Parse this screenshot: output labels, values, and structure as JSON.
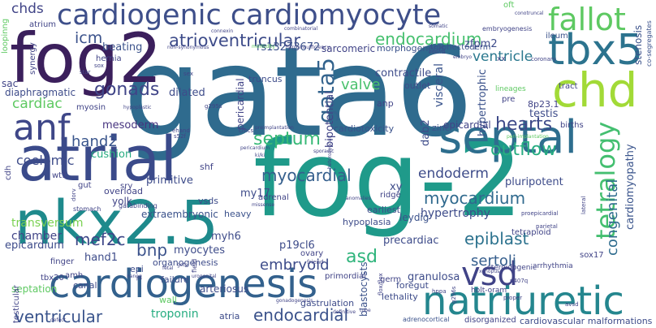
{
  "words": {
    "gata6": "gata6",
    "fog_2": "fog-2",
    "fog2": "fog2",
    "nkx2_5": "nkx2.5",
    "atrial": "atrial",
    "septal": "septal",
    "cardiogenesis": "cardiogenesis",
    "natriuretic": "natriuretic",
    "cardiogenic_cardiomyocyte": "cardiogenic cardiomyocyte",
    "chd": "chd",
    "tbx5": "tbx5",
    "anf": "anf",
    "fallot": "fallot",
    "tetralogy": "tetralogy",
    "vsd": "vsd",
    "gata5": "gata5",
    "endocardium": "endocardium",
    "atrioventricular": "atrioventricular",
    "ventricle": "ventricle",
    "icm": "icm",
    "chds": "chds",
    "myocardial": "myocardial",
    "myocardium": "myocardium",
    "endoderm": "endoderm",
    "septum": "septum",
    "outflow": "outflow",
    "hearts": "hearts",
    "gonads": "gonads",
    "cardiac": "cardiac",
    "hand2": "hand2",
    "mef2c": "mef2c",
    "bnp": "bnp",
    "epiblast": "epiblast",
    "sertoli": "sertoli",
    "asd": "asd",
    "ventricular": "ventricular",
    "endocardial": "endocardial",
    "embryoid": "embryoid",
    "congenital": "congenital",
    "valve": "valve",
    "cardiomyopathy": "cardiomyopathy",
    "hypertrophy": "hypertrophy",
    "rs13273672": "rs13273672",
    "sarcomeric": "sarcomeric",
    "zfpm2": "zfpm2",
    "beating": "beating",
    "dilated": "dilated",
    "mesoderm": "mesoderm",
    "contractile": "contractile",
    "pericardial": "pericardial",
    "visceral": "visceral",
    "bipotential": "bipotential",
    "hypertrophic": "hypertrophic",
    "testis": "testis",
    "epicardial": "epicardial",
    "cardiotoxicity": "cardiotoxicity",
    "dab2": "dab2",
    "cushion": "cushion",
    "primitive": "primitive",
    "coelomic": "coelomic",
    "transversum": "transversum",
    "extraembryonic": "extraembryonic",
    "myocytes": "myocytes",
    "myh6": "myh6",
    "my17": "my17",
    "hand1": "hand1",
    "chamber": "chamber",
    "epicardium": "epicardium",
    "p19cl6": "p19cl6",
    "leydig": "leydig",
    "precardiac": "precardiac",
    "granulosa": "granulosa",
    "troponin": "troponin",
    "septation": "septation",
    "arteriosus": "arteriosus",
    "blastocysts": "blastocysts",
    "pluripotent": "pluripotent",
    "tetraploid": "tetraploid",
    "heavy": "heavy",
    "yolk": "yolk",
    "diaphragmatic": "diaphragmatic",
    "sac": "sac",
    "atrium": "atrium",
    "hernia": "hernia",
    "morphogenesis": "morphogenesis",
    "ileum": "ileum",
    "stenosis": "stenosis",
    "8p23_1": "8p23.1",
    "outlet": "outlet",
    "anp": "anp",
    "zinc": "zinc",
    "truncus": "truncus",
    "vsds": "vsds",
    "shf": "shf",
    "cdh": "cdh",
    "wt1": "wt1",
    "sry": "sry",
    "overload": "overload",
    "gut": "gut",
    "xy": "xy",
    "ridge": "ridge",
    "organogenesis": "organogenesis",
    "epi": "epi",
    "sox17": "sox17",
    "ovary": "ovary",
    "germ": "germ",
    "lethality": "lethality",
    "foregut": "foregut",
    "wall": "wall",
    "atria": "atria",
    "canal": "canal",
    "tbx20": "tbx20",
    "testicular": "testicular",
    "amh": "amh",
    "failure": "failure",
    "gastrulation": "gastrulation",
    "finger": "finger",
    "earliest": "earliest",
    "hypoplasia": "hypoplasia",
    "primordial": "primordial",
    "cardiovascular_malformations": "cardiovascular malformations",
    "disorganized": "disorganized",
    "adrenocortical": "adrenocortical",
    "oft": "oft",
    "lineages": "lineages",
    "pre": "pre",
    "births": "births",
    "myosin": "myosin",
    "synergy": "synergy",
    "loopinng": "loopinng",
    "tract": "tract",
    "trophectoderm": "trophectoderm",
    "embryogenesis": "embryogenesis",
    "gatabinding": "gatabinding",
    "stomach": "stomach",
    "adrenal": "adrenal",
    "steroidogenic": "steroidogenic",
    "arrhythmia": "arrhythmia",
    "holt_oram": "holt-oram",
    "ehand": "ehand",
    "s52f": "s52f",
    "hppa": "hppa",
    "p407q": "p407q",
    "proepicardial": "proepicardial",
    "parietal": "parietal",
    "cmcs": "cmcs",
    "dorv": "dorv",
    "g296s": "g296s",
    "g295s": "g295s",
    "co_segregates": "co-segregates",
    "coronary": "coronary",
    "xx": "xx",
    "lateral": "lateral",
    "atrioventricular_small": "atrioventricular",
    "non_synonymous": "non-synonymous",
    "haploinsufficiency": "haploinsufficiency",
    "combinatorial": "combinatorial",
    "morbidity": "morbidity",
    "preimplantation": "preimplantation",
    "pericardium": "pericardium",
    "peri_implantation": "peri-implantation",
    "hypoplastic": "hypoplastic",
    "sporadic": "sporadic",
    "heterozygous": "heterozygous",
    "flox_flox": "flox/flox",
    "anomalies": "anomalies",
    "missense": "missense",
    "friend": "friend",
    "urogenital": "urogenital",
    "nanog": "nanog",
    "fetal": "fetal",
    "gonadogenesis": "gonadogenesis",
    "definitive": "definitive",
    "defect": "defect",
    "edema": "edema",
    "embryo": "embryo",
    "xenopus": "xenopus",
    "field": "field",
    "gcts": "gcts",
    "star": "star",
    "sox": "sox",
    "somatic": "somatic",
    "proper": "proper",
    "avsd": "avsd",
    "tube": "tube",
    "cardiomyocytes_small": "cardiomyocytes",
    "conotruncal": "conotruncal",
    "connexin": "connexin",
    "sex": "sex",
    "mutation": "mutation",
    "ki_ki": "ki/ki",
    "p1": "p1"
  },
  "colors": {
    "gata6": "#2f6b8e",
    "fog_2": "#1f9a8a",
    "fog2": "#3b1f5c",
    "nkx2_5": "#1e8a8c",
    "atrial": "#3a4a8a",
    "septal": "#2e6e8e",
    "cardiogenesis": "#33618d",
    "natriuretic": "#24868e",
    "cardiogenic_cardiomyocyte": "#3e4f8a",
    "chd": "#a2da37",
    "tbx5": "#2c738e",
    "anf": "#3f4788",
    "fallot": "#5ec962",
    "tetralogy": "#44bf70",
    "vsd": "#404387"
  }
}
